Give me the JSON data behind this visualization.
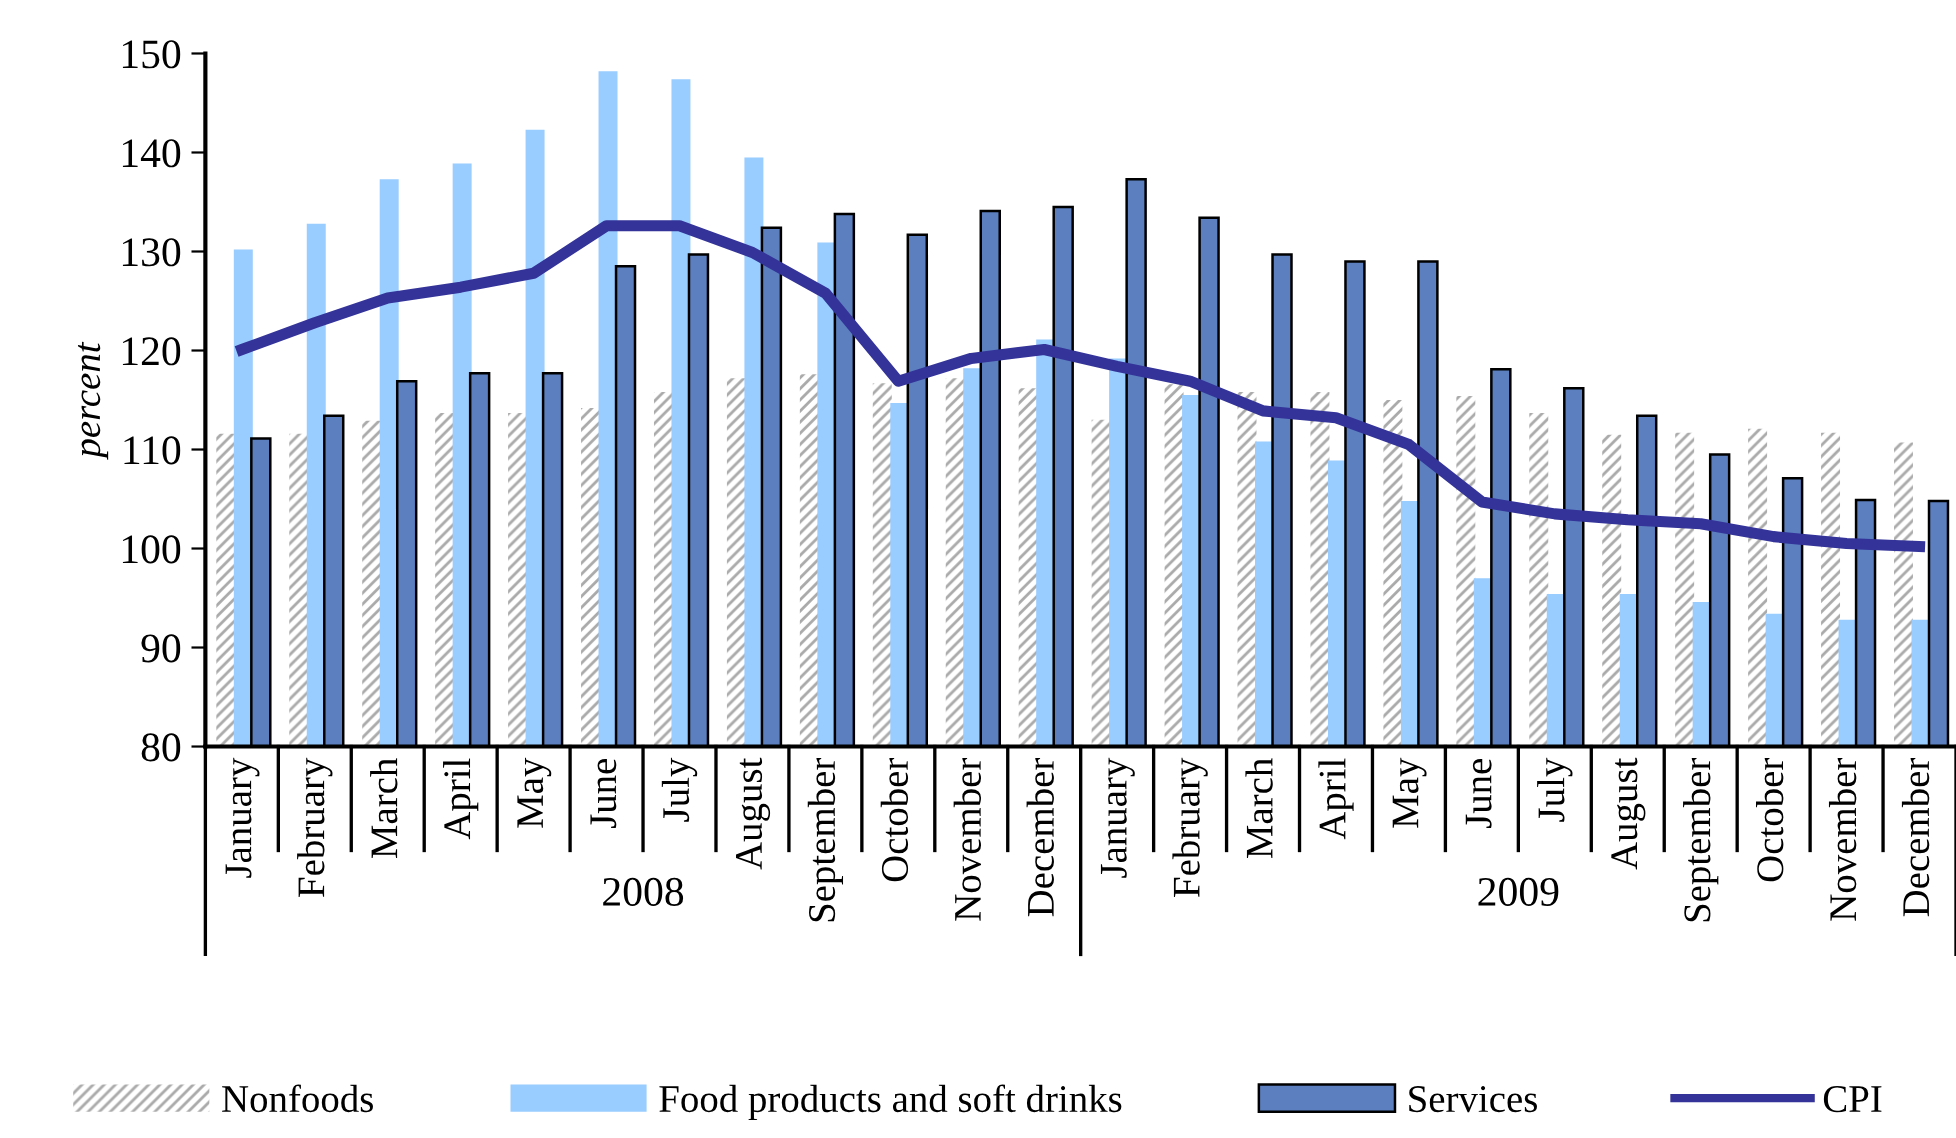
{
  "chart_data": {
    "type": "bar",
    "ylabel": "percent",
    "categories": [
      "January",
      "February",
      "March",
      "April",
      "May",
      "June",
      "July",
      "August",
      "September",
      "October",
      "November",
      "December",
      "January",
      "February",
      "March",
      "April",
      "May",
      "June",
      "July",
      "August",
      "September",
      "October",
      "November",
      "December"
    ],
    "series": [
      {
        "name": "Nonfoods",
        "color": "#ffffff",
        "values": [
          111.6,
          111.6,
          112.9,
          113.7,
          113.7,
          114.2,
          115.8,
          117.2,
          117.6,
          116.7,
          117.2,
          116.2,
          113.0,
          116.6,
          115.8,
          115.8,
          115.0,
          115.4,
          113.7,
          111.5,
          111.7,
          112.1,
          111.7,
          110.7
        ]
      },
      {
        "name": "Food products and soft drinks",
        "color": "#99ccff",
        "values": [
          130.2,
          132.8,
          137.3,
          138.9,
          142.3,
          148.2,
          147.4,
          139.5,
          130.9,
          114.7,
          118.2,
          121.1,
          119.2,
          115.5,
          110.8,
          108.9,
          104.8,
          97.0,
          95.4,
          95.4,
          94.6,
          93.4,
          92.8,
          92.8
        ]
      },
      {
        "name": "Services",
        "color": "#5b7fbf",
        "values": [
          111.1,
          113.4,
          116.9,
          117.7,
          117.7,
          128.5,
          129.7,
          132.4,
          133.8,
          131.7,
          134.1,
          134.5,
          137.3,
          133.4,
          129.7,
          129.0,
          129.0,
          118.1,
          116.2,
          113.4,
          109.5,
          107.1,
          104.9,
          104.8
        ]
      },
      {
        "name": "CPI",
        "type": "line",
        "color": "#333399",
        "values": [
          120.1,
          122.8,
          125.3,
          126.4,
          127.8,
          132.6,
          132.6,
          129.9,
          125.8,
          116.9,
          119.2,
          120.1,
          118.4,
          116.9,
          113.9,
          113.2,
          110.5,
          104.7,
          103.5,
          102.9,
          102.5,
          101.2,
          100.5,
          100.2
        ]
      }
    ],
    "annotations": [
      "2008",
      "2009"
    ],
    "ylim": [
      80,
      150
    ],
    "yticks": [
      80,
      90,
      100,
      110,
      120,
      130,
      140,
      150
    ],
    "grid": false,
    "legend": "bottom",
    "marker": "none",
    "line_style": "solid"
  }
}
